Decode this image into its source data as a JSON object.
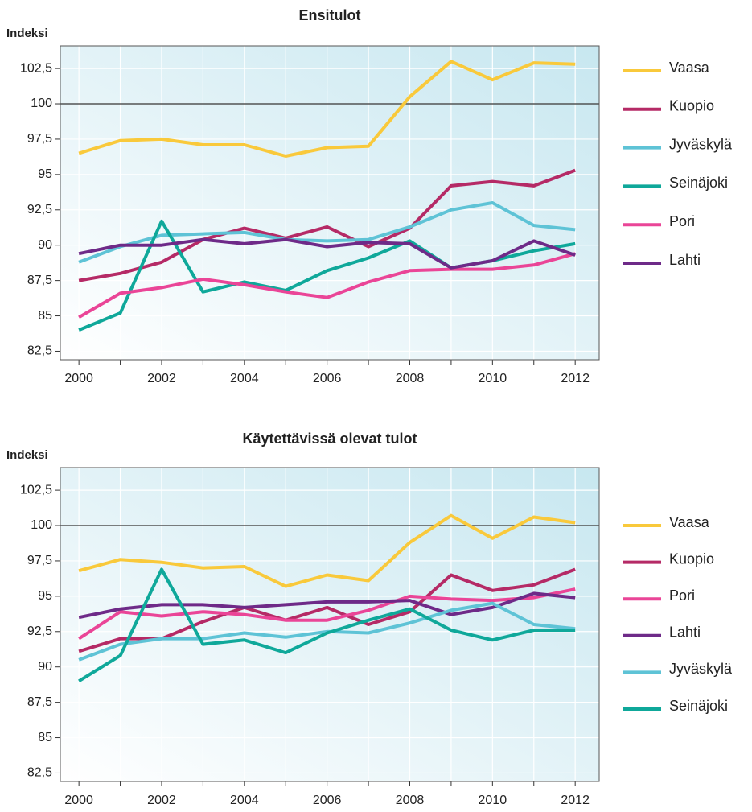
{
  "chart_data": [
    {
      "type": "line",
      "title": "Ensitulot",
      "ylabel": "Indeksi",
      "x": [
        2000,
        2001,
        2002,
        2003,
        2004,
        2005,
        2006,
        2007,
        2008,
        2009,
        2010,
        2011,
        2012
      ],
      "xlim": [
        1999.55,
        2012.58
      ],
      "xticks": [
        2000,
        2002,
        2004,
        2006,
        2008,
        2010,
        2012
      ],
      "xminor_ticks": [
        2001,
        2003,
        2005,
        2007,
        2009,
        2011
      ],
      "ylim": [
        81.9,
        104.1
      ],
      "yticks": [
        {
          "value": 82.5,
          "label": "82,5"
        },
        85,
        {
          "value": 87.5,
          "label": "87,5"
        },
        90,
        {
          "value": 92.5,
          "label": "92,5"
        },
        95,
        {
          "value": 97.5,
          "label": "97,5"
        },
        100,
        {
          "value": 102.5,
          "label": "102,5"
        }
      ],
      "hline": 100,
      "grid": true,
      "series": [
        {
          "name": "Vaasa",
          "color": "#f9c93b",
          "values": [
            96.5,
            97.4,
            97.5,
            97.1,
            97.1,
            96.3,
            96.9,
            97.0,
            100.5,
            103.0,
            101.7,
            102.9,
            102.8
          ]
        },
        {
          "name": "Kuopio",
          "color": "#b52a66",
          "values": [
            87.5,
            88.0,
            88.8,
            90.4,
            91.2,
            90.5,
            91.3,
            89.9,
            91.2,
            94.2,
            94.5,
            94.2,
            95.3
          ]
        },
        {
          "name": "Jyväskylä",
          "color": "#5ec3d6",
          "values": [
            88.8,
            89.9,
            90.7,
            90.8,
            90.9,
            90.4,
            90.3,
            90.4,
            91.3,
            92.5,
            93.0,
            91.4,
            91.1
          ]
        },
        {
          "name": "Seinäjoki",
          "color": "#0fa89a",
          "values": [
            84.0,
            85.2,
            91.7,
            86.7,
            87.4,
            86.8,
            88.2,
            89.1,
            90.3,
            88.4,
            88.9,
            89.6,
            90.1
          ]
        },
        {
          "name": "Pori",
          "color": "#ea4597",
          "values": [
            84.9,
            86.6,
            87.0,
            87.6,
            87.2,
            86.7,
            86.3,
            87.4,
            88.2,
            88.3,
            88.3,
            88.6,
            89.4
          ]
        },
        {
          "name": "Lahti",
          "color": "#6e2a88",
          "values": [
            89.4,
            90.0,
            90.0,
            90.4,
            90.1,
            90.4,
            89.9,
            90.2,
            90.1,
            88.4,
            88.9,
            90.3,
            89.3
          ]
        }
      ]
    },
    {
      "type": "line",
      "title": "Käytettävissä olevat tulot",
      "ylabel": "Indeksi",
      "x": [
        2000,
        2001,
        2002,
        2003,
        2004,
        2005,
        2006,
        2007,
        2008,
        2009,
        2010,
        2011,
        2012
      ],
      "xlim": [
        1999.55,
        2012.58
      ],
      "xticks": [
        2000,
        2002,
        2004,
        2006,
        2008,
        2010,
        2012
      ],
      "xminor_ticks": [
        2001,
        2003,
        2005,
        2007,
        2009,
        2011
      ],
      "ylim": [
        81.9,
        104.1
      ],
      "yticks": [
        {
          "value": 82.5,
          "label": "82,5"
        },
        85,
        {
          "value": 87.5,
          "label": "87,5"
        },
        90,
        {
          "value": 92.5,
          "label": "92,5"
        },
        95,
        {
          "value": 97.5,
          "label": "97,5"
        },
        100,
        {
          "value": 102.5,
          "label": "102,5"
        }
      ],
      "hline": 100,
      "grid": true,
      "series": [
        {
          "name": "Vaasa",
          "color": "#f9c93b",
          "values": [
            96.8,
            97.6,
            97.4,
            97.0,
            97.1,
            95.7,
            96.5,
            96.1,
            98.8,
            100.7,
            99.1,
            100.6,
            100.2
          ]
        },
        {
          "name": "Kuopio",
          "color": "#b52a66",
          "values": [
            91.1,
            92.0,
            92.0,
            93.2,
            94.2,
            93.3,
            94.2,
            93.0,
            93.9,
            96.5,
            95.4,
            95.8,
            96.9
          ]
        },
        {
          "name": "Pori",
          "color": "#ea4597",
          "values": [
            92.0,
            93.9,
            93.6,
            93.9,
            93.7,
            93.3,
            93.3,
            94.0,
            95.0,
            94.8,
            94.7,
            94.9,
            95.5
          ]
        },
        {
          "name": "Lahti",
          "color": "#6e2a88",
          "values": [
            93.5,
            94.1,
            94.4,
            94.4,
            94.2,
            94.4,
            94.6,
            94.6,
            94.7,
            93.7,
            94.2,
            95.2,
            94.9
          ]
        },
        {
          "name": "Jyväskylä",
          "color": "#5ec3d6",
          "values": [
            90.5,
            91.6,
            92.0,
            92.0,
            92.4,
            92.1,
            92.5,
            92.4,
            93.1,
            94.0,
            94.5,
            93.0,
            92.7
          ]
        },
        {
          "name": "Seinäjoki",
          "color": "#0fa89a",
          "values": [
            89.0,
            90.8,
            96.9,
            91.6,
            91.9,
            91.0,
            92.4,
            93.3,
            94.1,
            92.6,
            91.9,
            92.6,
            92.6
          ]
        }
      ]
    }
  ]
}
